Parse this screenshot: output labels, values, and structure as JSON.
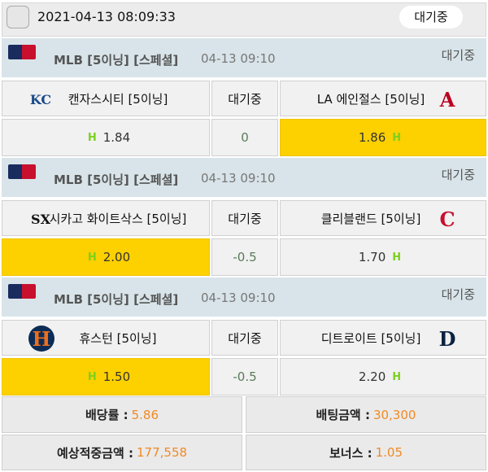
{
  "header": {
    "datetime": "2021-04-13 08:09:33",
    "status": "대기중"
  },
  "games": [
    {
      "league": "MLB [5이닝] [스페셜]",
      "time": "04-13 09:10",
      "status": "대기중",
      "home": {
        "name": "캔자스시티 [5이닝]",
        "logo": "kc-royals-logo",
        "odds": "1.84",
        "selected": false
      },
      "mid_label": "대기중",
      "handicap": "0",
      "away": {
        "name": "LA 에인절스 [5이닝]",
        "logo": "la-angels-logo",
        "odds": "1.86",
        "selected": true
      }
    },
    {
      "league": "MLB [5이닝] [스페셜]",
      "time": "04-13 09:10",
      "status": "대기중",
      "home": {
        "name": "시카고 화이트삭스 [5이닝]",
        "logo": "white-sox-logo",
        "odds": "2.00",
        "selected": true
      },
      "mid_label": "대기중",
      "handicap": "-0.5",
      "away": {
        "name": "클리블랜드 [5이닝]",
        "logo": "cleveland-logo",
        "odds": "1.70",
        "selected": false
      }
    },
    {
      "league": "MLB [5이닝] [스페셜]",
      "time": "04-13 09:10",
      "status": "대기중",
      "home": {
        "name": "휴스턴 [5이닝]",
        "logo": "astros-logo",
        "odds": "1.50",
        "selected": true
      },
      "mid_label": "대기중",
      "handicap": "-0.5",
      "away": {
        "name": "디트로이트 [5이닝]",
        "logo": "tigers-logo",
        "odds": "2.20",
        "selected": false
      }
    }
  ],
  "h_marker": "H",
  "summary": {
    "odds_label": "배당률 :",
    "odds": "5.86",
    "bet_label": "배팅금액 :",
    "bet": "30,300",
    "expected_label": "예상적중금액 :",
    "expected": "177,558",
    "bonus_label": "보너스 :",
    "bonus": "1.05"
  },
  "colors": {
    "selected": "#fdd000",
    "handicap_marker": "#7cd11e",
    "amount": "#f08a24",
    "league_bg": "#d8e4e9"
  }
}
